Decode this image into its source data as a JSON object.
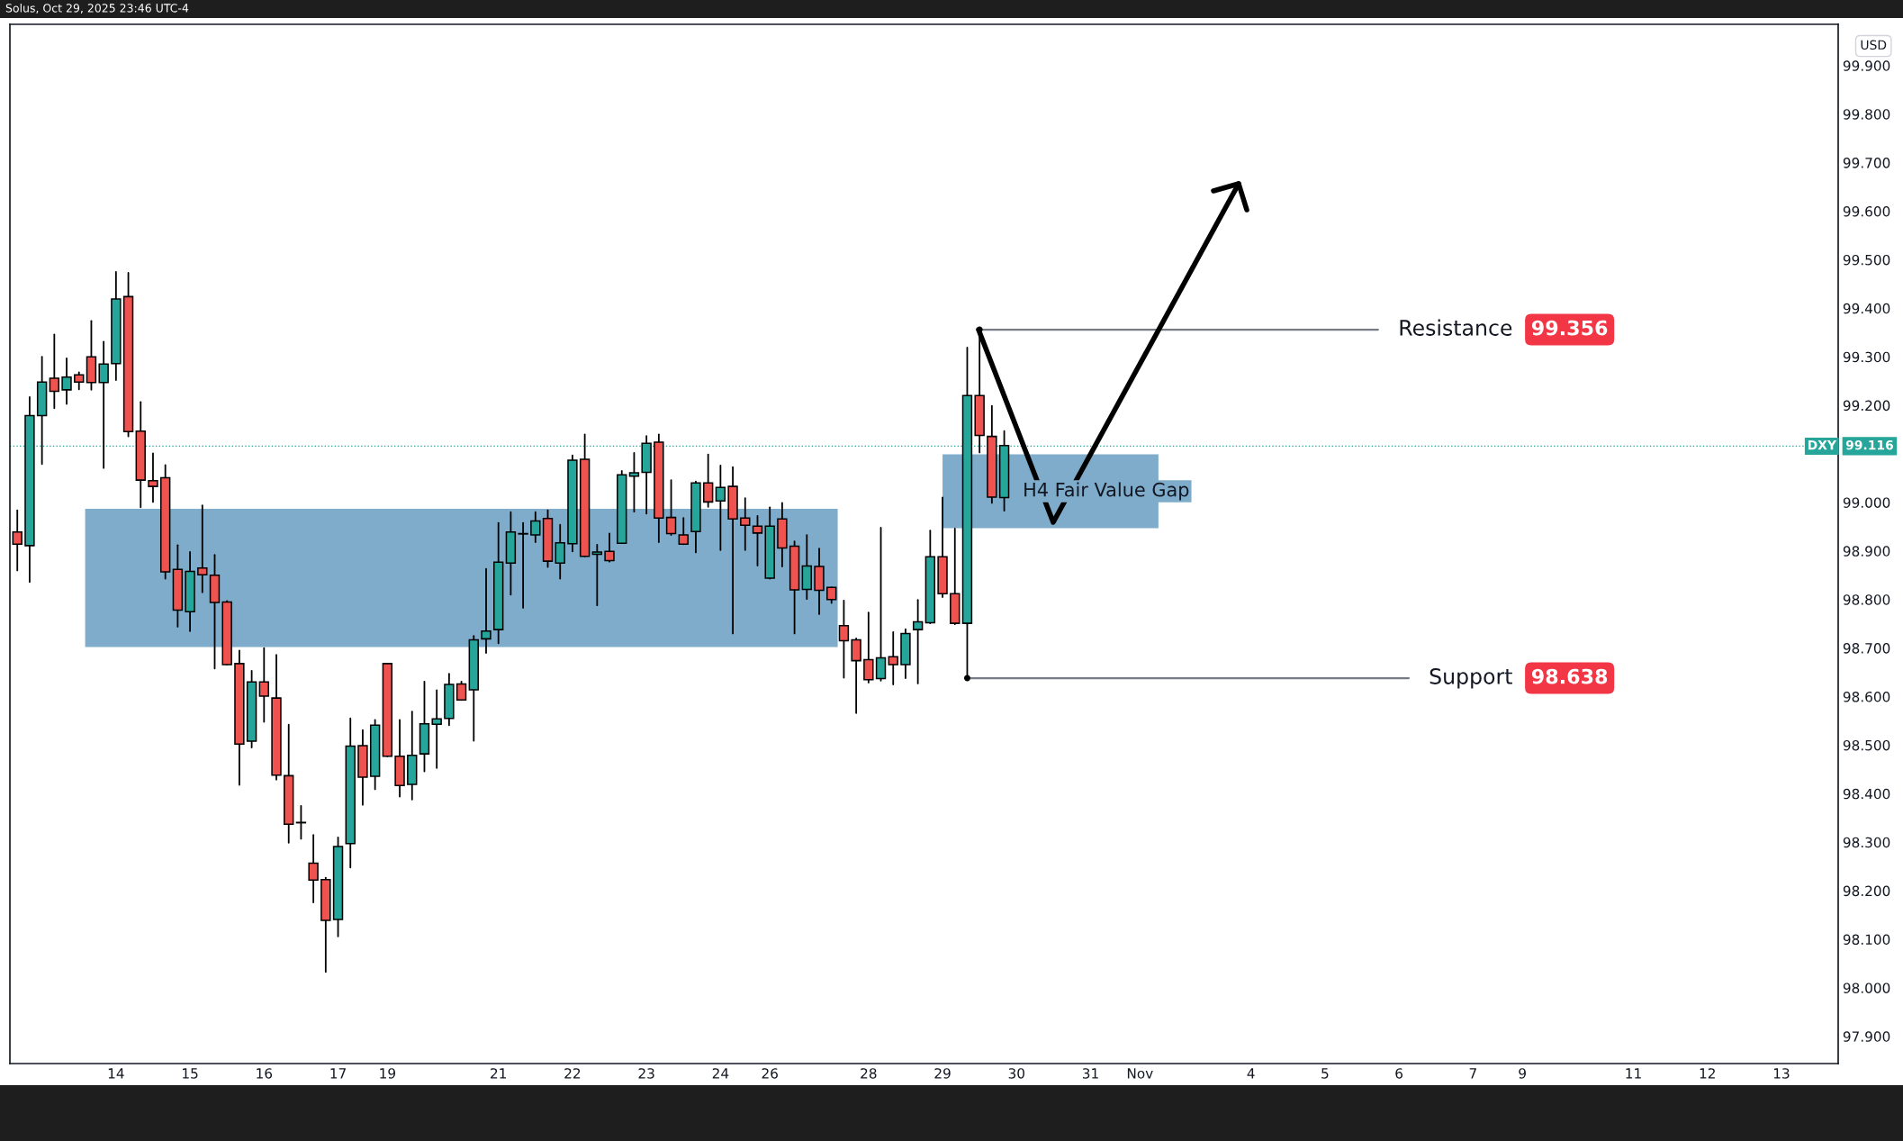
{
  "chart_data": {
    "type": "candlestick",
    "ylabel": "USD",
    "annotations": [
      "Solus, Oct 29, 2025 23:46 UTC-4",
      "99.116",
      "99.356",
      "98.638"
    ],
    "categories": [
      null,
      null,
      null,
      null,
      null,
      null,
      null,
      null,
      "14",
      null,
      null,
      null,
      null,
      null,
      "15",
      null,
      null,
      null,
      null,
      null,
      "16",
      null,
      null,
      null,
      null,
      null,
      "17",
      null,
      null,
      null,
      "19",
      null,
      null,
      null,
      null,
      null,
      null,
      null,
      null,
      "21",
      null,
      null,
      null,
      null,
      null,
      "22",
      null,
      null,
      null,
      null,
      null,
      "23",
      null,
      null,
      null,
      null,
      null,
      "24",
      null,
      null,
      null,
      "26",
      null,
      null,
      null,
      null,
      null,
      null,
      null,
      "28",
      null,
      null,
      null,
      null,
      null,
      "29",
      null,
      null,
      null,
      null,
      null,
      "30",
      null,
      null,
      null,
      null,
      null,
      "31",
      null,
      null,
      null,
      "Nov",
      null,
      null,
      null,
      null,
      null,
      null,
      null,
      null,
      "4",
      null,
      null,
      null,
      null,
      null,
      "5",
      null,
      null,
      null,
      null,
      null,
      "6",
      null,
      null,
      null,
      null,
      null,
      "7",
      null,
      null,
      null,
      "9",
      null,
      null,
      null,
      null,
      null,
      null,
      null,
      null,
      "11",
      null,
      null,
      null,
      null,
      null,
      "12",
      null,
      null,
      null,
      null,
      null,
      "13",
      null,
      null,
      null,
      null
    ],
    "ohlc": [
      [
        98.939,
        98.984,
        98.86,
        98.914
      ],
      [
        98.911,
        99.217,
        98.836,
        99.179
      ],
      [
        99.179,
        99.3,
        99.079,
        99.248
      ],
      [
        99.256,
        99.346,
        99.194,
        99.229
      ],
      [
        99.232,
        99.297,
        99.203,
        99.258
      ],
      [
        99.263,
        99.268,
        99.233,
        99.248
      ],
      [
        99.3,
        99.374,
        99.232,
        99.247
      ],
      [
        99.247,
        99.331,
        99.071,
        99.285
      ],
      [
        99.286,
        99.475,
        99.252,
        99.419
      ],
      [
        99.424,
        99.473,
        99.136,
        99.146
      ],
      [
        99.147,
        99.207,
        98.99,
        99.046
      ],
      [
        99.045,
        99.101,
        99.001,
        99.033
      ],
      [
        99.051,
        99.077,
        98.843,
        98.857
      ],
      [
        98.862,
        98.912,
        98.744,
        98.778
      ],
      [
        98.775,
        98.898,
        98.735,
        98.858
      ],
      [
        98.865,
        98.994,
        98.815,
        98.851
      ],
      [
        98.85,
        98.892,
        98.658,
        98.794
      ],
      [
        98.795,
        98.797,
        98.666,
        98.666
      ],
      [
        98.668,
        98.695,
        98.418,
        98.502
      ],
      [
        98.508,
        98.653,
        98.495,
        98.63
      ],
      [
        98.63,
        98.7,
        98.548,
        98.601
      ],
      [
        98.597,
        98.686,
        98.429,
        98.438
      ],
      [
        98.437,
        98.542,
        98.299,
        98.337
      ],
      [
        98.34,
        98.375,
        98.307,
        98.34
      ],
      [
        98.257,
        98.315,
        98.176,
        98.222
      ],
      [
        98.223,
        98.227,
        98.033,
        98.139
      ],
      [
        98.141,
        98.31,
        98.106,
        98.291
      ],
      [
        98.297,
        98.555,
        98.248,
        98.498
      ],
      [
        98.499,
        98.531,
        98.377,
        98.434
      ],
      [
        98.436,
        98.552,
        98.409,
        98.541
      ],
      [
        98.668,
        98.668,
        98.477,
        98.477
      ],
      [
        98.477,
        98.552,
        98.394,
        98.417
      ],
      [
        98.419,
        98.569,
        98.388,
        98.479
      ],
      [
        98.482,
        98.631,
        98.446,
        98.544
      ],
      [
        98.543,
        98.613,
        98.453,
        98.554
      ],
      [
        98.555,
        98.647,
        98.541,
        98.625
      ],
      [
        98.626,
        98.631,
        98.593,
        98.593
      ],
      [
        98.614,
        98.725,
        98.509,
        98.717
      ],
      [
        98.719,
        98.863,
        98.69,
        98.735
      ],
      [
        98.738,
        98.958,
        98.71,
        98.877
      ],
      [
        98.875,
        98.98,
        98.81,
        98.939
      ],
      [
        98.935,
        98.958,
        98.783,
        98.935
      ],
      [
        98.933,
        98.98,
        98.918,
        98.962
      ],
      [
        98.967,
        98.984,
        98.867,
        98.879
      ],
      [
        98.875,
        98.954,
        98.843,
        98.917
      ],
      [
        98.915,
        99.097,
        98.899,
        99.087
      ],
      [
        99.089,
        99.14,
        98.889,
        98.889
      ],
      [
        98.893,
        98.913,
        98.788,
        98.898
      ],
      [
        98.899,
        98.936,
        98.878,
        98.88
      ],
      [
        98.916,
        99.065,
        98.916,
        99.057
      ],
      [
        99.054,
        99.102,
        98.981,
        99.061
      ],
      [
        99.062,
        99.137,
        98.977,
        99.122
      ],
      [
        99.124,
        99.14,
        98.918,
        98.968
      ],
      [
        98.969,
        99.046,
        98.933,
        98.936
      ],
      [
        98.933,
        98.968,
        98.914,
        98.914
      ],
      [
        98.94,
        99.043,
        98.897,
        99.04
      ],
      [
        99.04,
        99.099,
        98.991,
        99.001
      ],
      [
        99.003,
        99.076,
        98.902,
        99.031
      ],
      [
        99.033,
        99.073,
        98.73,
        98.966
      ],
      [
        98.968,
        99.009,
        98.902,
        98.953
      ],
      [
        98.951,
        98.972,
        98.87,
        98.937
      ],
      [
        98.844,
        98.99,
        98.843,
        98.951
      ],
      [
        98.966,
        98.999,
        98.868,
        98.906
      ],
      [
        98.91,
        98.92,
        98.73,
        98.82
      ],
      [
        98.821,
        98.933,
        98.801,
        98.869
      ],
      [
        98.868,
        98.905,
        98.77,
        98.819
      ],
      [
        98.825,
        98.825,
        98.793,
        98.8
      ],
      [
        98.746,
        98.798,
        98.639,
        98.715
      ],
      [
        98.717,
        98.72,
        98.566,
        98.674
      ],
      [
        98.676,
        98.773,
        98.629,
        98.635
      ],
      [
        98.637,
        98.948,
        98.633,
        98.68
      ],
      [
        98.682,
        98.733,
        98.625,
        98.666
      ],
      [
        98.666,
        98.739,
        98.638,
        98.73
      ],
      [
        98.738,
        98.799,
        98.627,
        98.754
      ],
      [
        98.752,
        98.942,
        98.751,
        98.888
      ],
      [
        98.888,
        99.01,
        98.805,
        98.812
      ],
      [
        98.812,
        98.946,
        98.749,
        98.751
      ],
      [
        98.751,
        99.319,
        98.638,
        99.22
      ],
      [
        99.22,
        99.356,
        99.103,
        99.138
      ],
      [
        99.136,
        99.199,
        98.999,
        99.011
      ],
      [
        99.01,
        99.147,
        98.983,
        99.117
      ],
      null,
      null,
      null,
      null,
      null,
      null,
      null,
      null,
      null,
      null,
      null,
      null,
      null,
      null,
      null,
      null,
      null,
      null,
      null,
      null,
      null,
      null,
      null,
      null,
      null,
      null,
      null,
      null,
      null,
      null,
      null,
      null,
      null,
      null,
      null,
      null,
      null,
      null,
      null,
      null,
      null,
      null,
      null,
      null,
      null,
      null,
      null,
      null,
      null,
      null,
      null,
      null,
      null,
      null,
      null,
      null,
      null,
      null,
      null,
      null,
      null,
      null,
      null,
      null,
      null,
      null,
      null
    ],
    "colors": [
      "#ef5350",
      "#26a69a",
      "#26a69a",
      "#ef5350",
      "#26a69a",
      "#ef5350",
      "#ef5350",
      "#26a69a",
      "#26a69a",
      "#ef5350",
      "#ef5350",
      "#ef5350",
      "#ef5350",
      "#ef5350",
      "#26a69a",
      "#ef5350",
      "#ef5350",
      "#ef5350",
      "#ef5350",
      "#26a69a",
      "#ef5350",
      "#ef5350",
      "#ef5350",
      "#26a69a",
      "#ef5350",
      "#ef5350",
      "#26a69a",
      "#26a69a",
      "#ef5350",
      "#26a69a",
      "#ef5350",
      "#ef5350",
      "#26a69a",
      "#26a69a",
      "#26a69a",
      "#26a69a",
      "#ef5350",
      "#26a69a",
      "#26a69a",
      "#26a69a",
      "#26a69a",
      "#26a69a",
      "#26a69a",
      "#ef5350",
      "#26a69a",
      "#26a69a",
      "#ef5350",
      "#26a69a",
      "#ef5350",
      "#26a69a",
      "#26a69a",
      "#26a69a",
      "#ef5350",
      "#ef5350",
      "#ef5350",
      "#26a69a",
      "#ef5350",
      "#26a69a",
      "#ef5350",
      "#ef5350",
      "#ef5350",
      "#26a69a",
      "#ef5350",
      "#ef5350",
      "#26a69a",
      "#ef5350",
      "#ef5350",
      "#ef5350",
      "#ef5350",
      "#ef5350",
      "#26a69a",
      "#ef5350",
      "#26a69a",
      "#26a69a",
      "#26a69a",
      "#ef5350",
      "#ef5350",
      "#26a69a",
      "#ef5350",
      "#ef5350",
      "#26a69a",
      null,
      null,
      null,
      null,
      null,
      null,
      null,
      null,
      null,
      null,
      null,
      null,
      null,
      null,
      null,
      null,
      null,
      null,
      null,
      null,
      null,
      null,
      null,
      null,
      null,
      null,
      null,
      null,
      null,
      null,
      null,
      null,
      null,
      null,
      null,
      null,
      null,
      null,
      null,
      null,
      null,
      null,
      null,
      null,
      null,
      null,
      null,
      null,
      null,
      null,
      null,
      null,
      null,
      null,
      null,
      null,
      null,
      null,
      null,
      null,
      null,
      null,
      null,
      null,
      null,
      null,
      null
    ],
    "ylim": [
      97.844,
      99.985
    ],
    "yticks": [
      {
        "value": 97.9,
        "label": "97.900"
      },
      {
        "value": 98.0,
        "label": "98.000"
      },
      {
        "value": 98.1,
        "label": "98.100"
      },
      {
        "value": 98.2,
        "label": "98.200"
      },
      {
        "value": 98.3,
        "label": "98.300"
      },
      {
        "value": 98.4,
        "label": "98.400"
      },
      {
        "value": 98.5,
        "label": "98.500"
      },
      {
        "value": 98.6,
        "label": "98.600"
      },
      {
        "value": 98.7,
        "label": "98.700"
      },
      {
        "value": 98.8,
        "label": "98.800"
      },
      {
        "value": 98.9,
        "label": "98.900"
      },
      {
        "value": 99.0,
        "label": "99.000"
      },
      {
        "value": 99.2,
        "label": "99.200"
      },
      {
        "value": 99.3,
        "label": "99.300"
      },
      {
        "value": 99.4,
        "label": "99.400"
      },
      {
        "value": 99.5,
        "label": "99.500"
      },
      {
        "value": 99.6,
        "label": "99.600"
      },
      {
        "value": 99.7,
        "label": "99.700"
      },
      {
        "value": 99.8,
        "label": "99.800"
      },
      {
        "value": 99.9,
        "label": "99.900"
      }
    ],
    "ref_lines": [
      {
        "axis": "y",
        "value": 99.116,
        "label": "DXY",
        "color": "#26a69a",
        "line_style": "dotted"
      },
      {
        "axis": "y",
        "value": 99.356,
        "label": "Resistance",
        "color": "#787b86",
        "line_style": "solid"
      },
      {
        "axis": "y",
        "value": 98.638,
        "label": "Support",
        "color": "#787b86",
        "line_style": "solid"
      }
    ],
    "bands": [
      {
        "axis": "y",
        "from": 98.702,
        "to": 98.987,
        "color": "#7facca"
      },
      {
        "axis": "y",
        "from": 98.947,
        "to": 99.099,
        "color": "#7facca",
        "label": "H4 Fair Value Gap"
      }
    ],
    "grid": false,
    "legend": false
  }
}
